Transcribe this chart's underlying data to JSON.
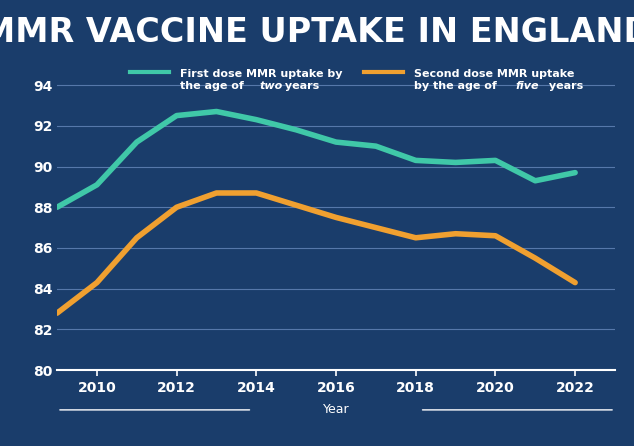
{
  "title": "MMR VACCINE UPTAKE IN ENGLAND",
  "title_color": "#ffffff",
  "title_fontsize": 24,
  "title_bg_color": "#0a0a0a",
  "plot_bg_color": "#1a3d6b",
  "figure_bg_color": "#1a3d6b",
  "grid_color": "#6688bb",
  "text_color": "#ffffff",
  "xlabel": "Year",
  "xlim": [
    2009.0,
    2023.0
  ],
  "ylim": [
    80,
    95
  ],
  "yticks": [
    80,
    82,
    84,
    86,
    88,
    90,
    92,
    94
  ],
  "xticks": [
    2010,
    2012,
    2014,
    2016,
    2018,
    2020,
    2022
  ],
  "first_dose": {
    "x": [
      2009,
      2010,
      2011,
      2012,
      2013,
      2014,
      2015,
      2016,
      2017,
      2018,
      2019,
      2020,
      2021,
      2022
    ],
    "y": [
      88.0,
      89.1,
      91.2,
      92.5,
      92.7,
      92.3,
      91.8,
      91.2,
      91.0,
      90.3,
      90.2,
      90.3,
      89.3,
      89.7
    ],
    "color": "#40c8a8",
    "linewidth": 4
  },
  "second_dose": {
    "x": [
      2009,
      2010,
      2011,
      2012,
      2013,
      2014,
      2015,
      2016,
      2017,
      2018,
      2019,
      2020,
      2021,
      2022
    ],
    "y": [
      82.8,
      84.3,
      86.5,
      88.0,
      88.7,
      88.7,
      88.1,
      87.5,
      87.0,
      86.5,
      86.7,
      86.6,
      85.5,
      84.3
    ],
    "color": "#f0a030",
    "linewidth": 4
  },
  "legend_label1_part1": "First dose MMR uptake by",
  "legend_label1_part2": "the age of ",
  "legend_label1_italic": "two",
  "legend_label1_part3": " years",
  "legend_label2_part1": "Second dose MMR uptake",
  "legend_label2_part2": "by the age of ",
  "legend_label2_italic": "five",
  "legend_label2_part3": " years"
}
